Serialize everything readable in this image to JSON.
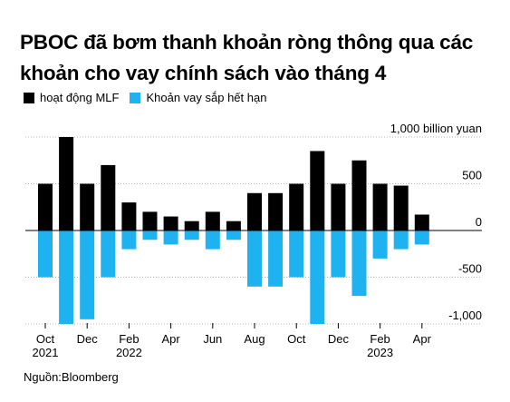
{
  "title_lines": [
    "PBOC đã bơm thanh khoản ròng thông qua các",
    "khoản cho vay chính sách vào tháng 4"
  ],
  "legend": [
    {
      "label": "hoạt động MLF",
      "color": "#000000"
    },
    {
      "label": "Khoản vay sắp hết hạn",
      "color": "#1fb2f0"
    }
  ],
  "source": "Nguồn:Bloomberg",
  "chart_data": {
    "type": "bar",
    "categories": [
      "Oct 2021",
      "Nov 2021",
      "Dec 2021",
      "Jan 2022",
      "Feb 2022",
      "Mar 2022",
      "Apr 2022",
      "May 2022",
      "Jun 2022",
      "Jul 2022",
      "Aug 2022",
      "Sep 2022",
      "Oct 2022",
      "Nov 2022",
      "Dec 2022",
      "Jan 2023",
      "Feb 2023",
      "Mar 2023",
      "Apr 2023"
    ],
    "series": [
      {
        "name": "hoạt động MLF",
        "color": "#000000",
        "values": [
          500,
          1000,
          500,
          700,
          300,
          200,
          150,
          100,
          200,
          100,
          400,
          400,
          500,
          850,
          500,
          750,
          500,
          480,
          170
        ]
      },
      {
        "name": "Khoản vay sắp hết hạn",
        "color": "#1fb2f0",
        "values": [
          -500,
          -1000,
          -950,
          -500,
          -200,
          -100,
          -150,
          -100,
          -200,
          -100,
          -600,
          -600,
          -500,
          -1000,
          -500,
          -700,
          -300,
          -200,
          -150
        ]
      }
    ],
    "ylim": [
      -1050,
      1050
    ],
    "yticks": [
      {
        "value": 1000,
        "label": "1,000 billion yuan"
      },
      {
        "value": 500,
        "label": "500"
      },
      {
        "value": 0,
        "label": "0"
      },
      {
        "value": -500,
        "label": "-500"
      },
      {
        "value": -1000,
        "label": "-1,000"
      }
    ],
    "xticks": [
      {
        "index": 0,
        "label": "Oct",
        "year": "2021"
      },
      {
        "index": 2,
        "label": "Dec",
        "year": ""
      },
      {
        "index": 4,
        "label": "Feb",
        "year": "2022"
      },
      {
        "index": 6,
        "label": "Apr",
        "year": ""
      },
      {
        "index": 8,
        "label": "Jun",
        "year": ""
      },
      {
        "index": 10,
        "label": "Aug",
        "year": ""
      },
      {
        "index": 12,
        "label": "Oct",
        "year": ""
      },
      {
        "index": 14,
        "label": "Dec",
        "year": ""
      },
      {
        "index": 16,
        "label": "Feb",
        "year": "2023"
      },
      {
        "index": 18,
        "label": "Apr",
        "year": ""
      }
    ],
    "grid": true
  }
}
